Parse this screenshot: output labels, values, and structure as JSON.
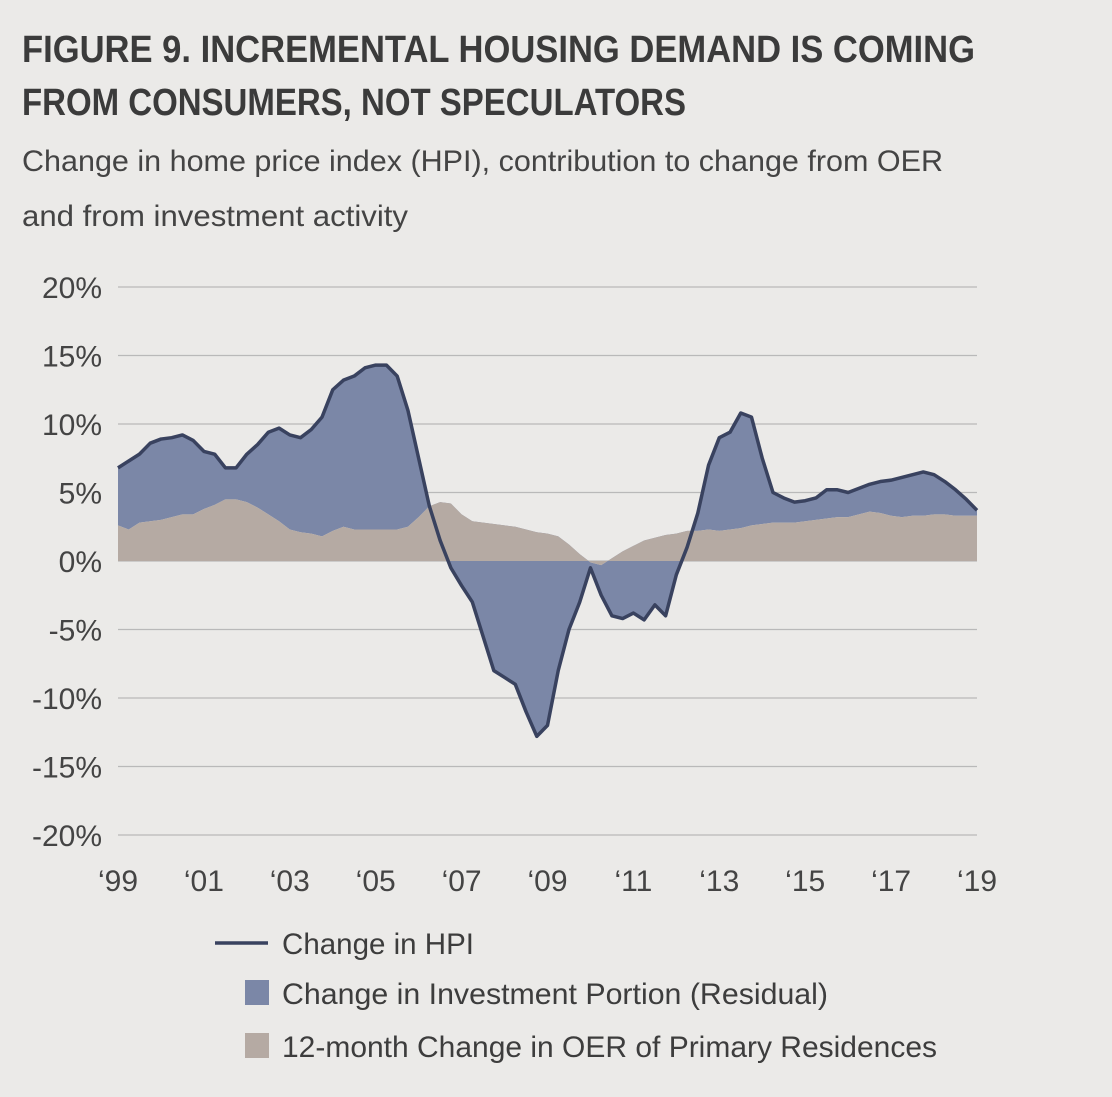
{
  "chart_data": {
    "type": "line",
    "title": [
      "FIGURE 9. INCREMENTAL HOUSING DEMAND IS COMING",
      "FROM CONSUMERS, NOT SPECULATORS"
    ],
    "subtitle": [
      "Change in home price index (HPI), contribution to change from OER",
      "and from investment activity"
    ],
    "x": [
      1999,
      1999.25,
      1999.5,
      1999.75,
      2000,
      2000.25,
      2000.5,
      2000.75,
      2001,
      2001.25,
      2001.5,
      2001.75,
      2002,
      2002.25,
      2002.5,
      2002.75,
      2003,
      2003.25,
      2003.5,
      2003.75,
      2004,
      2004.25,
      2004.5,
      2004.75,
      2005,
      2005.25,
      2005.5,
      2005.75,
      2006,
      2006.25,
      2006.5,
      2006.75,
      2007,
      2007.25,
      2007.5,
      2007.75,
      2008,
      2008.25,
      2008.5,
      2008.75,
      2009,
      2009.25,
      2009.5,
      2009.75,
      2010,
      2010.25,
      2010.5,
      2010.75,
      2011,
      2011.25,
      2011.5,
      2011.75,
      2012,
      2012.25,
      2012.5,
      2012.75,
      2013,
      2013.25,
      2013.5,
      2013.75,
      2014,
      2014.25,
      2014.5,
      2014.75,
      2015,
      2015.25,
      2015.5,
      2015.75,
      2016,
      2016.25,
      2016.5,
      2016.75,
      2017,
      2017.25,
      2017.5,
      2017.75,
      2018,
      2018.25,
      2018.5,
      2018.75,
      2019
    ],
    "series": [
      {
        "name": "Change in HPI",
        "color": "#39425f",
        "style": "line",
        "values": [
          6.8,
          7.3,
          7.8,
          8.6,
          8.9,
          9.0,
          9.2,
          8.8,
          8.0,
          7.8,
          6.8,
          6.8,
          7.8,
          8.5,
          9.4,
          9.7,
          9.2,
          9.0,
          9.6,
          10.5,
          12.5,
          13.2,
          13.5,
          14.1,
          14.3,
          14.3,
          13.5,
          11.0,
          7.5,
          4.0,
          1.5,
          -0.5,
          -1.8,
          -3.0,
          -5.5,
          -8.0,
          -8.5,
          -9.0,
          -11.0,
          -12.8,
          -12.0,
          -8.0,
          -5.0,
          -3.0,
          -0.5,
          -2.5,
          -4.0,
          -4.2,
          -3.8,
          -4.3,
          -3.2,
          -4.0,
          -1.0,
          1.0,
          3.5,
          7.0,
          9.0,
          9.4,
          10.8,
          10.5,
          7.5,
          5.0,
          4.6,
          4.3,
          4.4,
          4.6,
          5.2,
          5.2,
          5.0,
          5.3,
          5.6,
          5.8,
          5.9,
          6.1,
          6.3,
          6.5,
          6.3,
          5.8,
          5.2,
          4.5,
          3.7
        ]
      },
      {
        "name": "Change in Investment Portion (Residual)",
        "color": "#7b87a7",
        "style": "stacked-area",
        "values": [
          4.2,
          5.0,
          5.0,
          5.7,
          5.9,
          5.8,
          5.8,
          5.4,
          4.2,
          3.7,
          2.3,
          2.3,
          3.5,
          4.6,
          6.0,
          6.8,
          6.9,
          6.9,
          7.6,
          8.7,
          10.3,
          10.7,
          11.2,
          11.8,
          12.0,
          12.0,
          11.2,
          8.5,
          4.3,
          0.0,
          -2.8,
          -4.7,
          -5.2,
          -5.9,
          -8.3,
          -10.7,
          -11.1,
          -11.5,
          -13.3,
          -14.9,
          -14.0,
          -9.8,
          -6.2,
          -3.5,
          -0.4,
          -2.2,
          -4.2,
          -4.9,
          -4.9,
          -5.8,
          -4.9,
          -5.9,
          -3.0,
          -1.2,
          1.3,
          4.7,
          6.8,
          7.1,
          8.4,
          7.9,
          4.8,
          2.2,
          1.8,
          1.5,
          1.5,
          1.6,
          2.1,
          2.0,
          1.8,
          1.9,
          2.0,
          2.3,
          2.6,
          2.9,
          3.0,
          3.2,
          2.9,
          2.4,
          1.9,
          1.2,
          0.4
        ]
      },
      {
        "name": "12-month Change in OER of Primary Residences",
        "color": "#b5aaa3",
        "style": "area",
        "values": [
          2.6,
          2.3,
          2.8,
          2.9,
          3.0,
          3.2,
          3.4,
          3.4,
          3.8,
          4.1,
          4.5,
          4.5,
          4.3,
          3.9,
          3.4,
          2.9,
          2.3,
          2.1,
          2.0,
          1.8,
          2.2,
          2.5,
          2.3,
          2.3,
          2.3,
          2.3,
          2.3,
          2.5,
          3.2,
          4.0,
          4.3,
          4.2,
          3.4,
          2.9,
          2.8,
          2.7,
          2.6,
          2.5,
          2.3,
          2.1,
          2.0,
          1.8,
          1.2,
          0.5,
          -0.1,
          -0.3,
          0.2,
          0.7,
          1.1,
          1.5,
          1.7,
          1.9,
          2.0,
          2.2,
          2.2,
          2.3,
          2.2,
          2.3,
          2.4,
          2.6,
          2.7,
          2.8,
          2.8,
          2.8,
          2.9,
          3.0,
          3.1,
          3.2,
          3.2,
          3.4,
          3.6,
          3.5,
          3.3,
          3.2,
          3.3,
          3.3,
          3.4,
          3.4,
          3.3,
          3.3,
          3.3
        ]
      }
    ],
    "xlim": [
      1999,
      2019
    ],
    "xticks": [
      {
        "value": 1999,
        "label": "‘99"
      },
      {
        "value": 2001,
        "label": "‘01"
      },
      {
        "value": 2003,
        "label": "‘03"
      },
      {
        "value": 2005,
        "label": "‘05"
      },
      {
        "value": 2007,
        "label": "‘07"
      },
      {
        "value": 2009,
        "label": "‘09"
      },
      {
        "value": 2011,
        "label": "‘11"
      },
      {
        "value": 2013,
        "label": "‘13"
      },
      {
        "value": 2015,
        "label": "‘15"
      },
      {
        "value": 2017,
        "label": "‘17"
      },
      {
        "value": 2019,
        "label": "‘19"
      }
    ],
    "ylim": [
      -20,
      20
    ],
    "yticks": [
      {
        "value": 20,
        "label": "20%"
      },
      {
        "value": 15,
        "label": "15%"
      },
      {
        "value": 10,
        "label": "10%"
      },
      {
        "value": 5,
        "label": "5%"
      },
      {
        "value": 0,
        "label": "0%"
      },
      {
        "value": -5,
        "label": "-5%"
      },
      {
        "value": -10,
        "label": "-10%"
      },
      {
        "value": -15,
        "label": "-15%"
      },
      {
        "value": -20,
        "label": "-20%"
      }
    ],
    "grid": true
  }
}
